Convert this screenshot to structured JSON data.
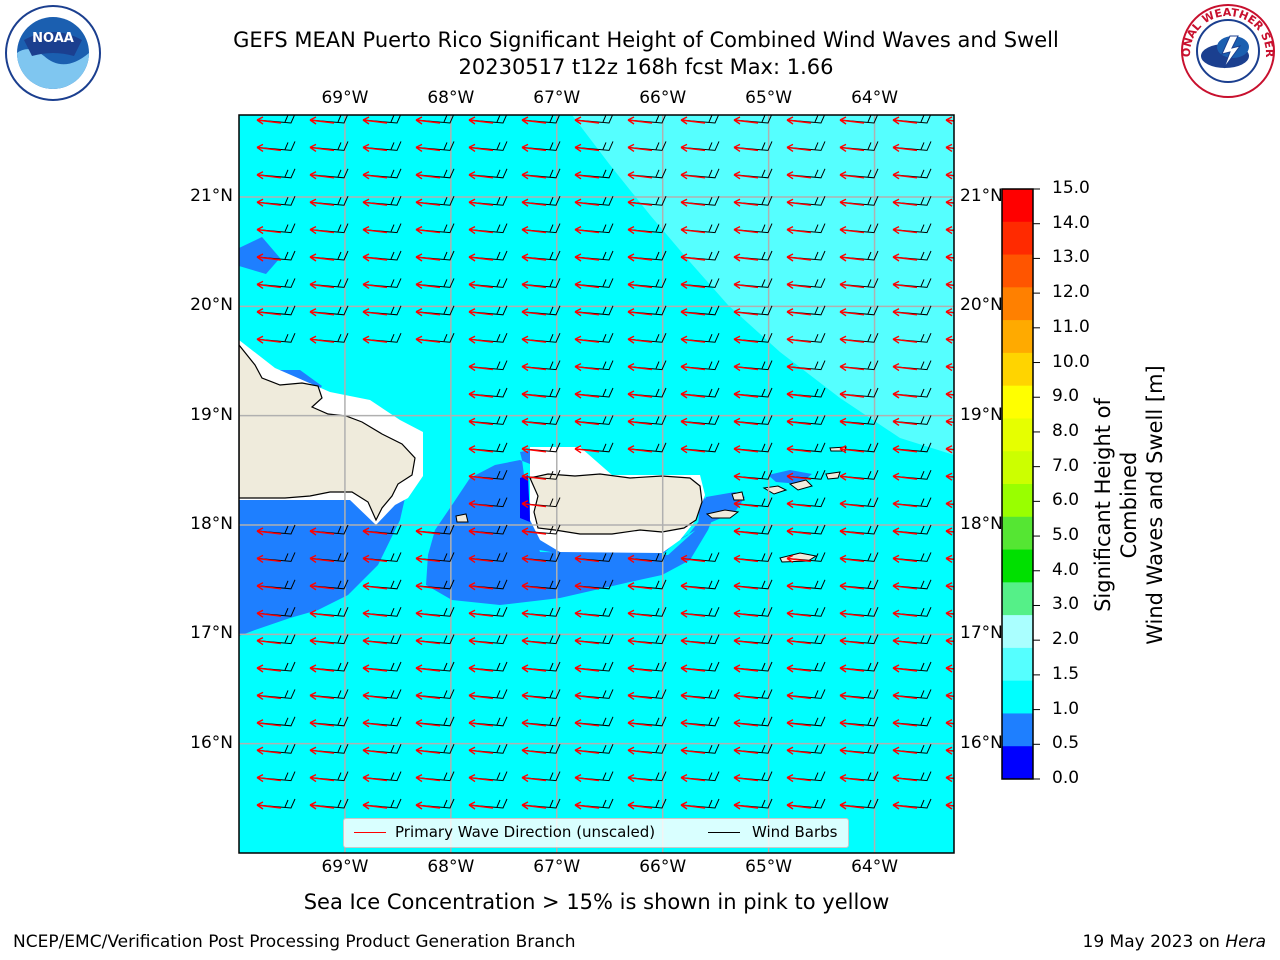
{
  "title": {
    "line1": "GEFS MEAN Puerto Rico Significant Height of Combined Wind Waves and Swell",
    "line2": "20230517 t12z 168h fcst   Max: 1.66"
  },
  "logos": {
    "left": {
      "name": "noaa-logo",
      "text": "NOAA"
    },
    "right": {
      "name": "nws-logo",
      "text": "NATIONAL WEATHER SERVICE"
    }
  },
  "map": {
    "lon_ticks": [
      "69°W",
      "68°W",
      "67°W",
      "66°W",
      "65°W",
      "64°W"
    ],
    "lat_ticks": [
      "21°N",
      "20°N",
      "19°N",
      "18°N",
      "17°N",
      "16°N"
    ],
    "lon_range": [
      -70.0,
      -63.25
    ],
    "lat_range": [
      15.0,
      21.75
    ],
    "max_value": 1.66
  },
  "colorbar": {
    "label": "Significant Height of Combined Wind Waves and Swell [m]",
    "label_line1": "Significant Height of Combined",
    "label_line2": "Wind Waves and Swell [m]",
    "ticks": [
      "15.0",
      "14.0",
      "13.0",
      "12.0",
      "11.0",
      "10.0",
      "9.0",
      "8.0",
      "7.0",
      "6.0",
      "5.0",
      "4.0",
      "3.0",
      "2.0",
      "1.5",
      "1.0",
      "0.5",
      "0.0"
    ],
    "colors": [
      "#ff0000",
      "#ff2a00",
      "#ff5500",
      "#ff8000",
      "#ffaa00",
      "#ffd400",
      "#ffff00",
      "#e6ff00",
      "#ccff00",
      "#99ff00",
      "#55e633",
      "#00e000",
      "#55f088",
      "#aaffff",
      "#55ffff",
      "#00ffff",
      "#1e7fff",
      "#0000ff"
    ]
  },
  "legend": {
    "wave_label": "Primary Wave Direction (unscaled)",
    "wave_color": "#ff0000",
    "barb_label": "Wind Barbs",
    "barb_color": "#000000"
  },
  "footer": {
    "note": "Sea Ice Concentration > 15% is shown in pink to yellow",
    "left": "NCEP/EMC/Verification Post Processing Product Generation Branch",
    "right_prefix": "19 May 2023 on ",
    "right_host": "Hera"
  }
}
